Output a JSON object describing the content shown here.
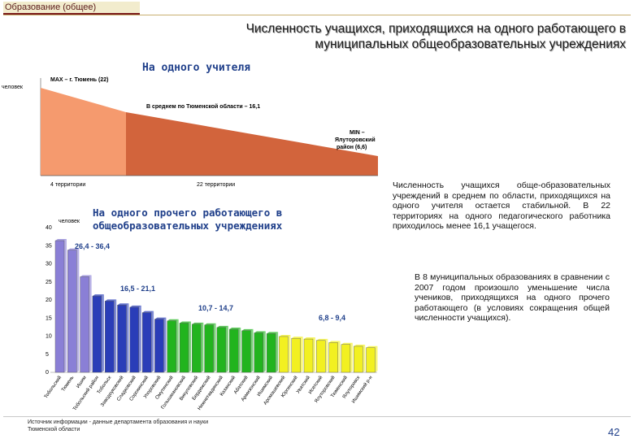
{
  "header": {
    "section_tag": "Образование (общее)",
    "title_line1": "Численность учащихся, приходящихся на одного работающего в",
    "title_line2": "муниципальных общеобразовательных учреждениях"
  },
  "teacher_chart": {
    "subtitle": "На одного учителя",
    "unit_label": "человек",
    "max_label": "MAX – г. Тюмень (22)",
    "avg_label": "В среднем по Тюменской области – 16,1",
    "min_label_line1": "MIN –",
    "min_label_line2": "Ялуторовский",
    "min_label_line3": "район (6,6)",
    "left_group_label": "4 территории",
    "right_group_label": "22 территории",
    "colors": {
      "above_avg": "#f59a6e",
      "below_avg": "#d2643c"
    }
  },
  "staff_chart": {
    "subtitle_line1": "На одного прочего работающего в",
    "subtitle_line2": "общеобразовательных учреждениях",
    "unit_label": "человек"
  },
  "chart_data": {
    "type": "bar",
    "title": "На одного прочего работающего в общеобразовательных учреждениях",
    "ylabel": "человек",
    "ylim": [
      0,
      40
    ],
    "yticks": [
      0,
      5,
      10,
      15,
      20,
      25,
      30,
      35,
      40
    ],
    "categories": [
      "Тобольский",
      "Тюмень",
      "Ишим",
      "Тобольский район",
      "Тобольск",
      "Заводоуковский",
      "Сладковский",
      "Сорокинский",
      "Упоровский",
      "Омутинский",
      "Голышмановский",
      "Викуловский",
      "Бердюжский",
      "Нижнетавдинский",
      "Казанский",
      "Абатский",
      "Армизонский",
      "Ишимский",
      "Аромашевский",
      "Юргинский",
      "Уватский",
      "Исетский",
      "Ялуторовский",
      "Тюменский",
      "Ялуторовск",
      "Ишимский р-н"
    ],
    "values": [
      36.4,
      33.8,
      26.4,
      21.1,
      19.7,
      18.6,
      18.0,
      16.5,
      14.7,
      14.2,
      13.6,
      13.3,
      13.1,
      12.4,
      11.9,
      11.5,
      10.9,
      10.7,
      9.9,
      9.4,
      9.2,
      8.8,
      8.2,
      7.7,
      7.2,
      6.8
    ],
    "group_labels": [
      "26,4 - 36,4",
      "16,5 - 21,1",
      "10,7 - 14,7",
      "6,8 - 9,4"
    ],
    "group_colors": [
      "#8a7fd6",
      "#2a3db8",
      "#22b41e",
      "#f2f021"
    ]
  },
  "text": {
    "para1": "Численность учащихся обще-образовательных учреждений в среднем по области, приходящихся на одного учителя остается стабильной. В 22 территориях на одного педагогического работника приходилось менее 16,1 учащегося.",
    "para2": "В 8 муниципальных образованиях в сравнении с 2007 годом произошло уменьшение числа учеников, приходящихся на одного прочего работающего (в условиях сокращения общей численности учащихся).",
    "source": "Источник информации - данные департамента образования и науки Тюменской области",
    "page_number": "42"
  }
}
